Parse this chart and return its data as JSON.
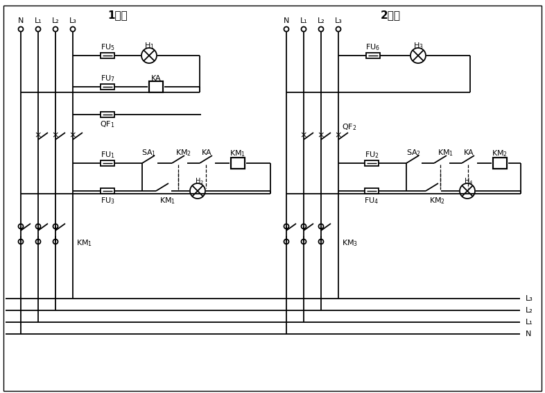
{
  "bg_color": "#ffffff",
  "line_color": "#000000",
  "figsize": [
    7.86,
    5.66
  ],
  "dpi": 100,
  "source1_label": "1电源",
  "source2_label": "2电源",
  "bus_labels_1": [
    "N",
    "L₁",
    "L₂",
    "L₃"
  ],
  "bus_labels_2": [
    "N",
    "L₁",
    "L₂",
    "L₃"
  ],
  "output_labels": [
    "L₃",
    "L₂",
    "L₁",
    "N"
  ]
}
